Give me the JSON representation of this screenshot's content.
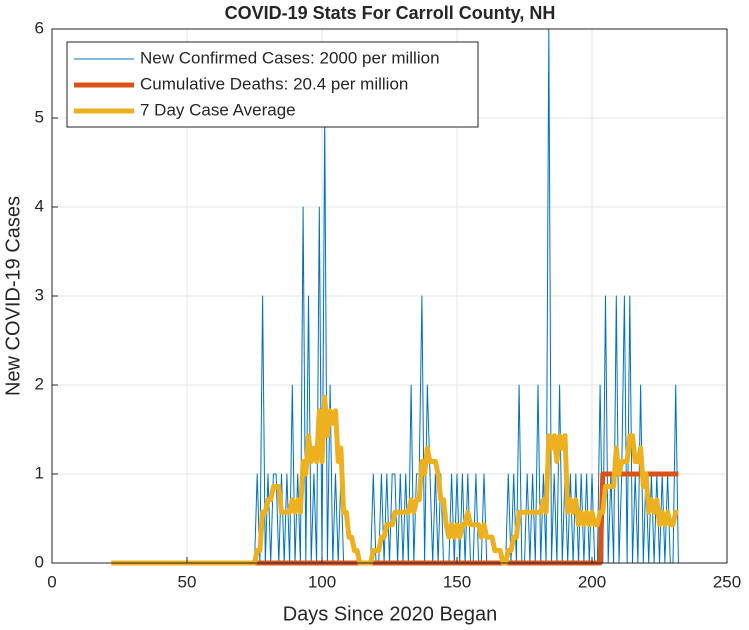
{
  "chart_data": {
    "type": "line",
    "title": "COVID-19 Stats For Carroll County, NH",
    "xlabel": "Days Since 2020 Began",
    "ylabel": "New COVID-19 Cases",
    "xlim": [
      0,
      250
    ],
    "xticks": [
      0,
      50,
      100,
      150,
      200,
      250
    ],
    "ylim": [
      0,
      6
    ],
    "yticks": [
      0,
      1,
      2,
      3,
      4,
      5,
      6
    ],
    "grid": true,
    "legend": "northwest",
    "x": [
      22,
      23,
      24,
      25,
      26,
      27,
      28,
      29,
      30,
      31,
      32,
      33,
      34,
      35,
      36,
      37,
      38,
      39,
      40,
      41,
      42,
      43,
      44,
      45,
      46,
      47,
      48,
      49,
      50,
      51,
      52,
      53,
      54,
      55,
      56,
      57,
      58,
      59,
      60,
      61,
      62,
      63,
      64,
      65,
      66,
      67,
      68,
      69,
      70,
      71,
      72,
      73,
      74,
      75,
      76,
      77,
      78,
      79,
      80,
      81,
      82,
      83,
      84,
      85,
      86,
      87,
      88,
      89,
      90,
      91,
      92,
      93,
      94,
      95,
      96,
      97,
      98,
      99,
      100,
      101,
      102,
      103,
      104,
      105,
      106,
      107,
      108,
      109,
      110,
      111,
      112,
      113,
      114,
      115,
      116,
      117,
      118,
      119,
      120,
      121,
      122,
      123,
      124,
      125,
      126,
      127,
      128,
      129,
      130,
      131,
      132,
      133,
      134,
      135,
      136,
      137,
      138,
      139,
      140,
      141,
      142,
      143,
      144,
      145,
      146,
      147,
      148,
      149,
      150,
      151,
      152,
      153,
      154,
      155,
      156,
      157,
      158,
      159,
      160,
      161,
      162,
      163,
      164,
      165,
      166,
      167,
      168,
      169,
      170,
      171,
      172,
      173,
      174,
      175,
      176,
      177,
      178,
      179,
      180,
      181,
      182,
      183,
      184,
      185,
      186,
      187,
      188,
      189,
      190,
      191,
      192,
      193,
      194,
      195,
      196,
      197,
      198,
      199,
      200,
      201,
      202,
      203,
      204,
      205,
      206,
      207,
      208,
      209,
      210,
      211,
      212,
      213,
      214,
      215,
      216,
      217,
      218,
      219,
      220,
      221,
      222,
      223,
      224,
      225,
      226,
      227,
      228,
      229,
      230,
      231,
      232
    ],
    "series": [
      {
        "name": "New Confirmed Cases: 2000 per million",
        "color": "#0072bd",
        "width": 1,
        "values": [
          0,
          0,
          0,
          0,
          0,
          0,
          0,
          0,
          0,
          0,
          0,
          0,
          0,
          0,
          0,
          0,
          0,
          0,
          0,
          0,
          0,
          0,
          0,
          0,
          0,
          0,
          0,
          0,
          0,
          0,
          0,
          0,
          0,
          0,
          0,
          0,
          0,
          0,
          0,
          0,
          0,
          0,
          0,
          0,
          0,
          0,
          0,
          0,
          0,
          0,
          0,
          0,
          0,
          0,
          1,
          0,
          3,
          0,
          1,
          0,
          1,
          1,
          0,
          1,
          0,
          1,
          0,
          2,
          0,
          1,
          0,
          4,
          0,
          3,
          0,
          1,
          0,
          4,
          0,
          5,
          0,
          2,
          0,
          1,
          0,
          1,
          0,
          0,
          0,
          0,
          0,
          0,
          0,
          0,
          0,
          0,
          0,
          1,
          0,
          0,
          1,
          0,
          1,
          0,
          1,
          1,
          0,
          1,
          0,
          1,
          0,
          2,
          0,
          1,
          1,
          3,
          0,
          2,
          1,
          0,
          1,
          0,
          1,
          0,
          0,
          0,
          1,
          0,
          1,
          0,
          1,
          0,
          1,
          0,
          0,
          1,
          0,
          0,
          1,
          0,
          0,
          0,
          0,
          0,
          0,
          0,
          0,
          1,
          0,
          1,
          0,
          2,
          0,
          0,
          1,
          0,
          1,
          0,
          2,
          0,
          1,
          0,
          6,
          0,
          1,
          0,
          2,
          0,
          1,
          0,
          1,
          0,
          1,
          0,
          1,
          0,
          1,
          0,
          1,
          0,
          0,
          2,
          0,
          3,
          0,
          1,
          0,
          3,
          0,
          1,
          3,
          0,
          3,
          0,
          1,
          0,
          2,
          0,
          1,
          0,
          1,
          0,
          1,
          0,
          1,
          0,
          1,
          0,
          0,
          2,
          0
        ]
      },
      {
        "name": "Cumulative Deaths: 20.4 per million",
        "color": "#d95319",
        "width": 5,
        "values": [
          0,
          0,
          0,
          0,
          0,
          0,
          0,
          0,
          0,
          0,
          0,
          0,
          0,
          0,
          0,
          0,
          0,
          0,
          0,
          0,
          0,
          0,
          0,
          0,
          0,
          0,
          0,
          0,
          0,
          0,
          0,
          0,
          0,
          0,
          0,
          0,
          0,
          0,
          0,
          0,
          0,
          0,
          0,
          0,
          0,
          0,
          0,
          0,
          0,
          0,
          0,
          0,
          0,
          0,
          0,
          0,
          0,
          0,
          0,
          0,
          0,
          0,
          0,
          0,
          0,
          0,
          0,
          0,
          0,
          0,
          0,
          0,
          0,
          0,
          0,
          0,
          0,
          0,
          0,
          0,
          0,
          0,
          0,
          0,
          0,
          0,
          0,
          0,
          0,
          0,
          0,
          0,
          0,
          0,
          0,
          0,
          0,
          0,
          0,
          0,
          0,
          0,
          0,
          0,
          0,
          0,
          0,
          0,
          0,
          0,
          0,
          0,
          0,
          0,
          0,
          0,
          0,
          0,
          0,
          0,
          0,
          0,
          0,
          0,
          0,
          0,
          0,
          0,
          0,
          0,
          0,
          0,
          0,
          0,
          0,
          0,
          0,
          0,
          0,
          0,
          0,
          0,
          0,
          0,
          0,
          0,
          0,
          0,
          0,
          0,
          0,
          0,
          0,
          0,
          0,
          0,
          0,
          0,
          0,
          0,
          0,
          0,
          0,
          0,
          0,
          0,
          0,
          0,
          0,
          0,
          0,
          0,
          0,
          0,
          0,
          0,
          0,
          0,
          0,
          0,
          0,
          0,
          1,
          1,
          1,
          1,
          1,
          1,
          1,
          1,
          1,
          1,
          1,
          1,
          1,
          1,
          1,
          1,
          1,
          1,
          1,
          1,
          1,
          1,
          1,
          1,
          1,
          1,
          1,
          1,
          1
        ]
      },
      {
        "name": "7 Day Case Average",
        "color": "#edb120",
        "width": 5,
        "values": [
          0,
          0,
          0,
          0,
          0,
          0,
          0,
          0,
          0,
          0,
          0,
          0,
          0,
          0,
          0,
          0,
          0,
          0,
          0,
          0,
          0,
          0,
          0,
          0,
          0,
          0,
          0,
          0,
          0,
          0,
          0,
          0,
          0,
          0,
          0,
          0,
          0,
          0,
          0,
          0,
          0,
          0,
          0,
          0,
          0,
          0,
          0,
          0,
          0,
          0,
          0,
          0,
          0,
          0,
          0.14,
          0.14,
          0.57,
          0.57,
          0.71,
          0.71,
          0.86,
          0.86,
          0.86,
          0.57,
          0.57,
          0.57,
          0.57,
          0.71,
          0.57,
          0.71,
          0.57,
          1.14,
          1,
          1.43,
          1.14,
          1.29,
          1.14,
          1.71,
          1.14,
          1.86,
          1.43,
          1.71,
          1.57,
          1.71,
          1.14,
          1.29,
          0.57,
          0.57,
          0.29,
          0.29,
          0.14,
          0.14,
          0,
          0,
          0,
          0,
          0,
          0.14,
          0.14,
          0.14,
          0.29,
          0.29,
          0.43,
          0.43,
          0.43,
          0.57,
          0.57,
          0.57,
          0.57,
          0.57,
          0.57,
          0.71,
          0.57,
          0.71,
          0.71,
          1.14,
          1,
          1.29,
          1.14,
          1.14,
          1.14,
          1,
          0.71,
          0.71,
          0.43,
          0.29,
          0.43,
          0.29,
          0.43,
          0.29,
          0.43,
          0.43,
          0.57,
          0.43,
          0.43,
          0.43,
          0.43,
          0.29,
          0.43,
          0.29,
          0.29,
          0.29,
          0.14,
          0.14,
          0.14,
          0,
          0,
          0.14,
          0.14,
          0.29,
          0.29,
          0.57,
          0.57,
          0.57,
          0.57,
          0.57,
          0.57,
          0.57,
          0.57,
          0.57,
          0.71,
          0.57,
          1.43,
          1.29,
          1.43,
          1.14,
          1.43,
          1.29,
          1.43,
          0.57,
          0.71,
          0.57,
          0.71,
          0.43,
          0.57,
          0.43,
          0.57,
          0.43,
          0.57,
          0.43,
          0.43,
          0.57,
          0.57,
          0.86,
          0.86,
          0.86,
          0.86,
          1.29,
          1,
          1.14,
          1.14,
          1.14,
          1.43,
          1.43,
          1.14,
          1.14,
          1.29,
          0.86,
          1,
          0.57,
          0.71,
          0.57,
          0.71,
          0.43,
          0.57,
          0.43,
          0.57,
          0.43,
          0.43,
          0.57,
          0.57
        ]
      }
    ]
  }
}
